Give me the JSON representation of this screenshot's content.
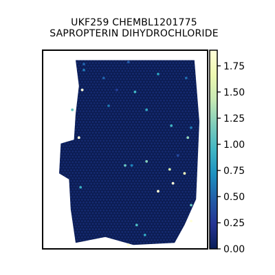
{
  "chart_data": {
    "type": "scatter",
    "title_lines": [
      "UKF259 CHEMBL1201775",
      "SAPROPTERIN DIHYDROCHLORIDE"
    ],
    "colorbar": {
      "vmin": 0.0,
      "vmax": 1.9,
      "ticks": [
        0.0,
        0.25,
        0.5,
        0.75,
        1.0,
        1.25,
        1.5,
        1.75
      ],
      "tick_labels": [
        "0.00",
        "0.25",
        "0.50",
        "0.75",
        "1.00",
        "1.25",
        "1.50",
        "1.75"
      ],
      "colormap": "YlGnBu",
      "colormap_stops": [
        "#081d58",
        "#253494",
        "#225ea8",
        "#1d91c0",
        "#41b6c4",
        "#7fcdbb",
        "#c7e9b4",
        "#edf8b1",
        "#ffffd9"
      ]
    },
    "base_value": 0.0,
    "base_spot_color": "#0c1d5b",
    "tissue_outline": [
      [
        0.2,
        0.05
      ],
      [
        0.92,
        0.05
      ],
      [
        0.95,
        0.36
      ],
      [
        0.93,
        0.75
      ],
      [
        0.86,
        0.88
      ],
      [
        0.8,
        0.97
      ],
      [
        0.55,
        0.98
      ],
      [
        0.38,
        0.94
      ],
      [
        0.2,
        0.97
      ],
      [
        0.17,
        0.8
      ],
      [
        0.16,
        0.65
      ],
      [
        0.1,
        0.62
      ],
      [
        0.11,
        0.47
      ],
      [
        0.19,
        0.45
      ],
      [
        0.2,
        0.32
      ],
      [
        0.22,
        0.18
      ]
    ],
    "highlight_spots": [
      {
        "x": 0.25,
        "y": 0.1,
        "value": 0.6
      },
      {
        "x": 0.37,
        "y": 0.14,
        "value": 0.5
      },
      {
        "x": 0.52,
        "y": 0.06,
        "value": 0.45
      },
      {
        "x": 0.45,
        "y": 0.2,
        "value": 0.3
      },
      {
        "x": 0.63,
        "y": 0.3,
        "value": 0.85
      },
      {
        "x": 0.7,
        "y": 0.12,
        "value": 0.8
      },
      {
        "x": 0.56,
        "y": 0.21,
        "value": 0.95
      },
      {
        "x": 0.87,
        "y": 0.14,
        "value": 0.55
      },
      {
        "x": 0.4,
        "y": 0.28,
        "value": 0.6
      },
      {
        "x": 0.18,
        "y": 0.3,
        "value": 1.1
      },
      {
        "x": 0.88,
        "y": 0.44,
        "value": 1.25
      },
      {
        "x": 0.82,
        "y": 0.53,
        "value": 0.35
      },
      {
        "x": 0.63,
        "y": 0.56,
        "value": 1.2
      },
      {
        "x": 0.77,
        "y": 0.6,
        "value": 1.5
      },
      {
        "x": 0.54,
        "y": 0.58,
        "value": 0.65
      },
      {
        "x": 0.86,
        "y": 0.62,
        "value": 1.75
      },
      {
        "x": 0.9,
        "y": 0.78,
        "value": 1.1
      },
      {
        "x": 0.78,
        "y": 0.38,
        "value": 0.95
      },
      {
        "x": 0.23,
        "y": 0.69,
        "value": 0.9
      },
      {
        "x": 0.57,
        "y": 0.88,
        "value": 1.0
      },
      {
        "x": 0.62,
        "y": 0.93,
        "value": 0.85
      },
      {
        "x": 0.9,
        "y": 0.39,
        "value": 0.6
      },
      {
        "x": 0.5,
        "y": 0.58,
        "value": 1.1
      },
      {
        "x": 0.25,
        "y": 0.07,
        "value": 0.5
      }
    ],
    "bright_spots": [
      {
        "x": 0.24,
        "y": 0.2,
        "value": 1.9
      },
      {
        "x": 0.22,
        "y": 0.44,
        "value": 1.9
      },
      {
        "x": 0.7,
        "y": 0.71,
        "value": 1.9
      },
      {
        "x": 0.79,
        "y": 0.67,
        "value": 1.9
      },
      {
        "x": 0.52,
        "y": 0.98,
        "value": 1.9
      },
      {
        "x": 0.9,
        "y": 0.86,
        "value": 1.9
      }
    ]
  }
}
